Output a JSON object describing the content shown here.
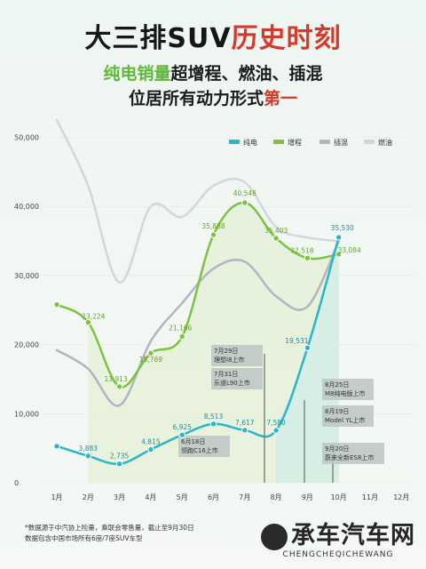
{
  "header": {
    "title_black": "大三排SUV",
    "title_red": "历史时刻",
    "line2_green": "纯电销量",
    "line2_dark": "超增程、燃油、插混",
    "line3_dark": "位居所有动力形式",
    "line3_red": "第一"
  },
  "footnote": {
    "line1": "*数据源于中汽协上险量，乘联会零售量，截止至9月30日",
    "line2": "数据包含中国市场所有6座/7座SUV车型"
  },
  "watermark": {
    "main": "承车汽车网",
    "sub": "CHENGCHEQICHEWANG"
  },
  "colors": {
    "ev": "#2ab5c9",
    "erev": "#7cc242",
    "phev": "#b2b4c0",
    "ice": "#d6d6d6",
    "ev_fill": "#cfece6",
    "erev_fill": "#e3f0d2"
  },
  "chart_data": {
    "type": "line",
    "x": [
      "1月",
      "2月",
      "3月",
      "4月",
      "5月",
      "6月",
      "7月",
      "8月",
      "9月",
      "10月",
      "11月",
      "12月"
    ],
    "yticks": [
      "0",
      "10,000",
      "20,000",
      "30,000",
      "40,000",
      "50,000"
    ],
    "ylim": [
      0,
      50000
    ],
    "legend_position": "top-right",
    "series": [
      {
        "name": "纯电",
        "key": "ev",
        "values": [
          5300,
          3883,
          2735,
          4815,
          6925,
          8513,
          7617,
          7580,
          19531,
          35530,
          null,
          null
        ],
        "labels": [
          "",
          "3,883",
          "2,735",
          "4,815",
          "6,925",
          "8,513",
          "7,617",
          "7,580",
          "19,531",
          "35,530",
          "",
          ""
        ]
      },
      {
        "name": "增程",
        "key": "erev",
        "values": [
          25800,
          23224,
          13913,
          18769,
          21166,
          35888,
          40548,
          35403,
          32518,
          33084,
          null,
          null
        ],
        "labels": [
          "",
          "23,224",
          "13,913",
          "18,769",
          "21,166",
          "35,888",
          "40,548",
          "35,403",
          "32,518",
          "33,084",
          "",
          ""
        ]
      },
      {
        "name": "插混",
        "key": "phev",
        "values": [
          19200,
          16500,
          11200,
          20500,
          26000,
          31000,
          32000,
          27000,
          25500,
          35000,
          null,
          null
        ]
      },
      {
        "name": "燃油",
        "key": "ice",
        "values": [
          52500,
          43000,
          29000,
          40000,
          38500,
          43000,
          43500,
          37000,
          35500,
          35000,
          null,
          null
        ]
      }
    ],
    "annotations": [
      {
        "key": "l7",
        "month": 7,
        "lines": [
          "7月29日",
          "理想i8上市"
        ]
      },
      {
        "key": "l6",
        "month": 7,
        "lines": [
          "7月31日",
          "乐道L90上市"
        ]
      },
      {
        "key": "l1",
        "month": 6,
        "lines": [
          "6月18日",
          "领跑C16上市"
        ]
      },
      {
        "key": "l4",
        "month": 9,
        "lines": [
          "8月25日",
          "M8纯电版上市"
        ]
      },
      {
        "key": "l5",
        "month": 9,
        "lines": [
          "8月19日",
          "Model YL上市"
        ]
      },
      {
        "key": "l9",
        "month": 10,
        "lines": [
          "9月20日",
          "蔚来全新ES8上市"
        ]
      }
    ]
  }
}
